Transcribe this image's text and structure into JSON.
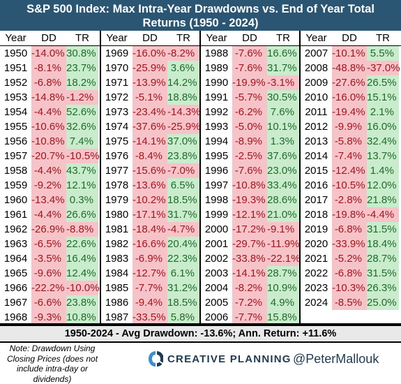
{
  "title": {
    "line1": "S&P 500 Index: Max Intra-Year Drawdowns vs. End of Year Total",
    "line2": "Returns (1950 - 2024)"
  },
  "headers": {
    "year": "Year",
    "dd": "DD",
    "tr": "TR"
  },
  "columns": [
    [
      [
        "1950",
        "-14.0%",
        "30.8%"
      ],
      [
        "1951",
        "-8.1%",
        "23.7%"
      ],
      [
        "1952",
        "-6.8%",
        "18.2%"
      ],
      [
        "1953",
        "-14.8%",
        "-1.2%"
      ],
      [
        "1954",
        "-4.4%",
        "52.6%"
      ],
      [
        "1955",
        "-10.6%",
        "32.6%"
      ],
      [
        "1956",
        "-10.8%",
        "7.4%"
      ],
      [
        "1957",
        "-20.7%",
        "-10.5%"
      ],
      [
        "1958",
        "-4.4%",
        "43.7%"
      ],
      [
        "1959",
        "-9.2%",
        "12.1%"
      ],
      [
        "1960",
        "-13.4%",
        "0.3%"
      ],
      [
        "1961",
        "-4.4%",
        "26.6%"
      ],
      [
        "1962",
        "-26.9%",
        "-8.8%"
      ],
      [
        "1963",
        "-6.5%",
        "22.6%"
      ],
      [
        "1964",
        "-3.5%",
        "16.4%"
      ],
      [
        "1965",
        "-9.6%",
        "12.4%"
      ],
      [
        "1966",
        "-22.2%",
        "-10.0%"
      ],
      [
        "1967",
        "-6.6%",
        "23.8%"
      ],
      [
        "1968",
        "-9.3%",
        "10.8%"
      ]
    ],
    [
      [
        "1969",
        "-16.0%",
        "-8.2%"
      ],
      [
        "1970",
        "-25.9%",
        "3.6%"
      ],
      [
        "1971",
        "-13.9%",
        "14.2%"
      ],
      [
        "1972",
        "-5.1%",
        "18.8%"
      ],
      [
        "1973",
        "-23.4%",
        "-14.3%"
      ],
      [
        "1974",
        "-37.6%",
        "-25.9%"
      ],
      [
        "1975",
        "-14.1%",
        "37.0%"
      ],
      [
        "1976",
        "-8.4%",
        "23.8%"
      ],
      [
        "1977",
        "-15.6%",
        "-7.0%"
      ],
      [
        "1978",
        "-13.6%",
        "6.5%"
      ],
      [
        "1979",
        "-10.2%",
        "18.5%"
      ],
      [
        "1980",
        "-17.1%",
        "31.7%"
      ],
      [
        "1981",
        "-18.4%",
        "-4.7%"
      ],
      [
        "1982",
        "-16.6%",
        "20.4%"
      ],
      [
        "1983",
        "-6.9%",
        "22.3%"
      ],
      [
        "1984",
        "-12.7%",
        "6.1%"
      ],
      [
        "1985",
        "-7.7%",
        "31.2%"
      ],
      [
        "1986",
        "-9.4%",
        "18.5%"
      ],
      [
        "1987",
        "-33.5%",
        "5.8%"
      ]
    ],
    [
      [
        "1988",
        "-7.6%",
        "16.6%"
      ],
      [
        "1989",
        "-7.6%",
        "31.7%"
      ],
      [
        "1990",
        "-19.9%",
        "-3.1%"
      ],
      [
        "1991",
        "-5.7%",
        "30.5%"
      ],
      [
        "1992",
        "-6.2%",
        "7.6%"
      ],
      [
        "1993",
        "-5.0%",
        "10.1%"
      ],
      [
        "1994",
        "-8.9%",
        "1.3%"
      ],
      [
        "1995",
        "-2.5%",
        "37.6%"
      ],
      [
        "1996",
        "-7.6%",
        "23.0%"
      ],
      [
        "1997",
        "-10.8%",
        "33.4%"
      ],
      [
        "1998",
        "-19.3%",
        "28.6%"
      ],
      [
        "1999",
        "-12.1%",
        "21.0%"
      ],
      [
        "2000",
        "-17.2%",
        "-9.1%"
      ],
      [
        "2001",
        "-29.7%",
        "-11.9%"
      ],
      [
        "2002",
        "-33.8%",
        "-22.1%"
      ],
      [
        "2003",
        "-14.1%",
        "28.7%"
      ],
      [
        "2004",
        "-8.2%",
        "10.9%"
      ],
      [
        "2005",
        "-7.2%",
        "4.9%"
      ],
      [
        "2006",
        "-7.7%",
        "15.8%"
      ]
    ],
    [
      [
        "2007",
        "-10.1%",
        "5.5%"
      ],
      [
        "2008",
        "-48.8%",
        "-37.0%"
      ],
      [
        "2009",
        "-27.6%",
        "26.5%"
      ],
      [
        "2010",
        "-16.0%",
        "15.1%"
      ],
      [
        "2011",
        "-19.4%",
        "2.1%"
      ],
      [
        "2012",
        "-9.9%",
        "16.0%"
      ],
      [
        "2013",
        "-5.8%",
        "32.4%"
      ],
      [
        "2014",
        "-7.4%",
        "13.7%"
      ],
      [
        "2015",
        "-12.4%",
        "1.4%"
      ],
      [
        "2016",
        "-10.5%",
        "12.0%"
      ],
      [
        "2017",
        "-2.8%",
        "21.8%"
      ],
      [
        "2018",
        "-19.8%",
        "-4.4%"
      ],
      [
        "2019",
        "-6.8%",
        "31.5%"
      ],
      [
        "2020",
        "-33.9%",
        "18.4%"
      ],
      [
        "2021",
        "-5.2%",
        "28.7%"
      ],
      [
        "2022",
        "-6.8%",
        "31.5%"
      ],
      [
        "2023",
        "-10.3%",
        "26.3%"
      ],
      [
        "2024",
        "-8.5%",
        "25.0%"
      ]
    ]
  ],
  "summary": "1950-2024 - Avg Drawdown: -13.6%; Ann. Return: +11.6%",
  "note": "Note: Drawdown Using Closing Prices (does not include intra-day or dividends)",
  "brand": {
    "name": "CREATIVE PLANNING",
    "logo_icon": "creative-planning-logo-icon"
  },
  "handle": "@PeterMallouk",
  "colors": {
    "header": "#2a5573",
    "negative_bg": "#f6c3c8",
    "negative_text": "#a4141d",
    "positive_bg": "#c8eccc",
    "positive_text": "#1f6b2a"
  }
}
